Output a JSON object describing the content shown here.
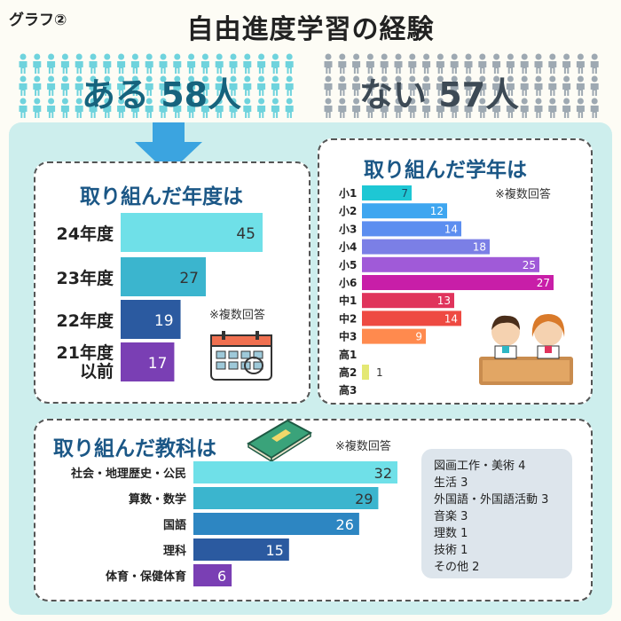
{
  "header": {
    "graph_label": "グラフ②",
    "title": "自由進度学習の経験",
    "yes_label": "ある  58人",
    "no_label": "ない  57人"
  },
  "colors": {
    "yes_people": "#6fd3dd",
    "no_people": "#9ea9b2",
    "panel": "#cdeeed",
    "title_blue": "#1b5786"
  },
  "icons": [
    "person-icon",
    "down-arrow-icon",
    "calendar-icon",
    "book-icon",
    "students-icon"
  ],
  "chart_data": [
    {
      "type": "bar",
      "title": "取り組んだ年度は",
      "note": "※複数回答",
      "categories": [
        "24年度",
        "23年度",
        "22年度",
        "21年度\n以前"
      ],
      "values": [
        45,
        27,
        19,
        17
      ],
      "colors": [
        "#6fe0e8",
        "#3bb5ce",
        "#2b5aa0",
        "#7a3fb4"
      ]
    },
    {
      "type": "bar",
      "title": "取り組んだ学年は",
      "note": "※複数回答",
      "categories": [
        "小1",
        "小2",
        "小3",
        "小4",
        "小5",
        "小6",
        "中1",
        "中2",
        "中3",
        "高1",
        "高2",
        "高3"
      ],
      "values": [
        7,
        12,
        14,
        18,
        25,
        27,
        13,
        14,
        9,
        null,
        1,
        null
      ],
      "colors": [
        "#1ec7d4",
        "#3ea6f0",
        "#5c8ef0",
        "#7b7fe6",
        "#a05ad8",
        "#c81ea8",
        "#e0345c",
        "#ee4a42",
        "#ff8a4e",
        "#cccccc",
        "#e4e874",
        "#cccccc"
      ]
    },
    {
      "type": "bar",
      "title": "取り組んだ教科は",
      "note": "※複数回答",
      "categories": [
        "社会・地理歴史・公民",
        "算数・数学",
        "国語",
        "理科",
        "体育・保健体育"
      ],
      "values": [
        32,
        29,
        26,
        15,
        6
      ],
      "colors": [
        "#6fe0e8",
        "#3bb5ce",
        "#2d86c2",
        "#2b5aa0",
        "#7a3fb4"
      ],
      "other": [
        "図画工作・美術 4",
        "生活 3",
        "外国語・外国語活動 3",
        "音楽 3",
        "理数 1",
        "技術 1",
        "その他 2"
      ]
    }
  ]
}
